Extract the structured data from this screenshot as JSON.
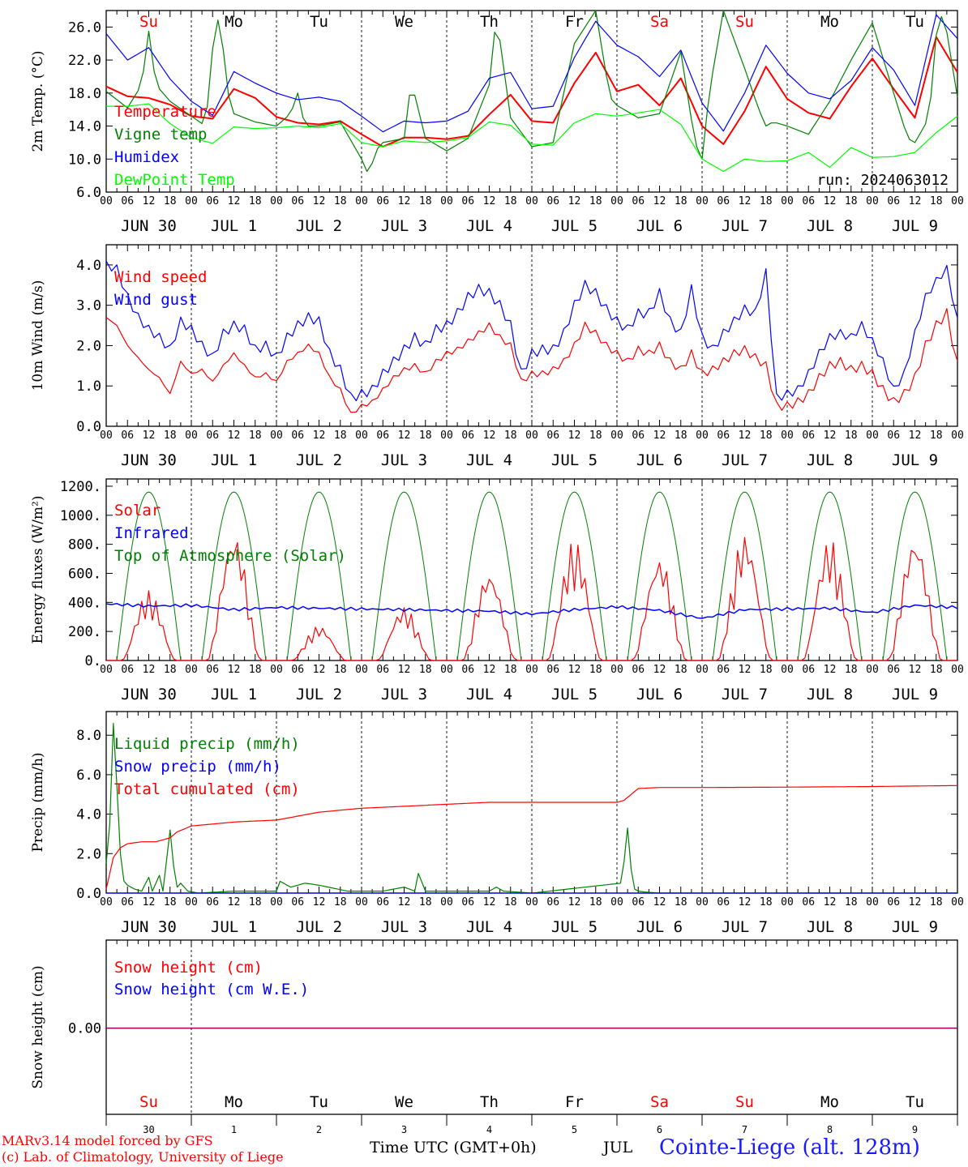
{
  "chart_data": [
    {
      "type": "line",
      "ylabel": "2m Temp. (°C)",
      "ylim": [
        6,
        28
      ],
      "yticks": [
        "6.0",
        "10.0",
        "14.0",
        "18.0",
        "22.0",
        "26.0"
      ],
      "days_top": [
        "Su",
        "Mo",
        "Tu",
        "We",
        "Th",
        "Fr",
        "Sa",
        "Su",
        "Mo",
        "Tu"
      ],
      "run_label": "run: 2024063012",
      "series": [
        {
          "name": "Temperature",
          "color": "#ff0000",
          "x": [
            0,
            6,
            12,
            18,
            24,
            30,
            36,
            42,
            48,
            54,
            60,
            66,
            72,
            78,
            84,
            90,
            96,
            102,
            108,
            114,
            120,
            126,
            132,
            138,
            144,
            150,
            156,
            162,
            168,
            174,
            180,
            186,
            192,
            198,
            204,
            210,
            216,
            222,
            228,
            234,
            240
          ],
          "y": [
            18.8,
            17.6,
            17.4,
            16.6,
            15.2,
            14.9,
            18.5,
            17.4,
            15.1,
            14.4,
            14.2,
            14.6,
            13.0,
            11.5,
            12.6,
            12.6,
            12.4,
            12.8,
            15.4,
            17.8,
            14.6,
            14.4,
            19.2,
            22.9,
            18.2,
            19.0,
            16.5,
            19.8,
            14.0,
            11.8,
            15.8,
            21.2,
            17.3,
            15.6,
            14.9,
            18.8,
            22.2,
            18.5,
            15.0,
            24.8,
            20.5
          ]
        },
        {
          "name": "Vigne temp",
          "color": "#008000",
          "x": [
            0,
            6,
            10,
            12,
            14,
            18,
            24,
            28,
            30,
            32,
            34,
            36,
            42,
            48,
            52,
            54,
            56,
            60,
            66,
            72,
            74,
            76,
            78,
            84,
            86,
            90,
            96,
            102,
            108,
            110,
            114,
            120,
            126,
            132,
            138,
            142,
            144,
            150,
            156,
            162,
            166,
            168,
            170,
            174,
            180,
            184,
            186,
            188,
            192,
            198,
            204,
            210,
            216,
            222,
            226,
            228,
            232,
            234,
            236,
            240
          ],
          "y": [
            18.2,
            16.2,
            19.0,
            25.5,
            19.0,
            17.0,
            15.2,
            14.0,
            23.4,
            28.0,
            18.5,
            15.5,
            14.5,
            14.0,
            15.5,
            18.0,
            14.0,
            14.0,
            14.5,
            10.0,
            8.0,
            11.0,
            12.0,
            12.5,
            19.5,
            12.5,
            11.0,
            12.5,
            19.0,
            27.5,
            15.0,
            11.5,
            12.0,
            24.0,
            28.0,
            17.5,
            16.5,
            15.0,
            15.5,
            23.0,
            12.0,
            10.0,
            18.0,
            28.0,
            21.0,
            16.0,
            14.0,
            14.5,
            14.0,
            13.0,
            17.0,
            22.0,
            26.5,
            18.0,
            12.5,
            12.0,
            15.0,
            25.0,
            28.0,
            17.5
          ]
        },
        {
          "name": "Humidex",
          "color": "#0000ff",
          "x": [
            0,
            6,
            12,
            18,
            24,
            30,
            36,
            42,
            48,
            54,
            60,
            66,
            72,
            78,
            84,
            90,
            96,
            102,
            108,
            114,
            120,
            126,
            132,
            138,
            144,
            150,
            156,
            162,
            168,
            174,
            180,
            186,
            192,
            198,
            204,
            210,
            216,
            222,
            228,
            234,
            240
          ],
          "y": [
            25.2,
            22.0,
            23.5,
            19.7,
            17.0,
            15.3,
            20.6,
            19.2,
            18.0,
            17.2,
            17.5,
            17.0,
            15.2,
            13.3,
            14.6,
            14.4,
            14.6,
            15.8,
            19.8,
            20.5,
            16.1,
            16.4,
            22.3,
            26.7,
            23.8,
            22.4,
            20.0,
            23.2,
            16.8,
            13.4,
            18.0,
            23.8,
            20.4,
            18.0,
            17.3,
            19.5,
            23.5,
            20.8,
            16.5,
            27.5,
            24.6
          ]
        },
        {
          "name": "DewPoint Temp",
          "color": "#00ff00",
          "x": [
            0,
            6,
            12,
            18,
            24,
            30,
            36,
            42,
            48,
            54,
            60,
            66,
            72,
            78,
            84,
            90,
            96,
            102,
            108,
            114,
            120,
            126,
            132,
            138,
            144,
            150,
            156,
            162,
            168,
            174,
            180,
            186,
            192,
            198,
            204,
            210,
            216,
            222,
            228,
            234,
            240
          ],
          "y": [
            16.4,
            16.4,
            16.7,
            14.3,
            12.6,
            11.9,
            13.9,
            13.7,
            13.8,
            14.0,
            13.8,
            14.3,
            12.0,
            11.5,
            12.2,
            12.0,
            12.2,
            12.6,
            14.5,
            14.1,
            11.8,
            11.7,
            14.4,
            15.5,
            15.2,
            15.6,
            16.0,
            14.2,
            10.0,
            8.5,
            10.0,
            9.7,
            9.8,
            10.8,
            9.0,
            11.4,
            10.2,
            10.3,
            10.8,
            13.2,
            15.2
          ]
        }
      ]
    },
    {
      "type": "line",
      "ylabel": "10m Wind (m/s)",
      "ylim": [
        0,
        4.5
      ],
      "yticks": [
        "0.0",
        "1.0",
        "2.0",
        "3.0",
        "4.0"
      ],
      "series": [
        {
          "name": "Wind speed",
          "color": "#ff0000",
          "x": [
            0,
            3,
            6,
            9,
            12,
            15,
            18,
            21,
            24,
            27,
            30,
            33,
            36,
            39,
            42,
            45,
            48,
            51,
            54,
            57,
            60,
            63,
            66,
            69,
            72,
            75,
            78,
            81,
            84,
            87,
            90,
            93,
            96,
            99,
            102,
            105,
            108,
            111,
            114,
            117,
            120,
            123,
            126,
            129,
            132,
            135,
            138,
            141,
            144,
            147,
            150,
            153,
            156,
            159,
            162,
            165,
            168,
            171,
            174,
            177,
            180,
            183,
            186,
            189,
            192,
            195,
            198,
            201,
            204,
            207,
            210,
            213,
            216,
            219,
            222,
            225,
            228,
            231,
            234,
            237,
            240
          ],
          "y": [
            2.7,
            2.5,
            2.0,
            1.7,
            1.4,
            1.2,
            0.8,
            1.6,
            1.3,
            1.4,
            1.1,
            1.5,
            1.8,
            1.5,
            1.2,
            1.3,
            1.1,
            1.6,
            1.8,
            2.0,
            1.8,
            1.2,
            0.9,
            0.3,
            0.5,
            0.6,
            0.9,
            1.2,
            1.4,
            1.5,
            1.3,
            1.6,
            1.8,
            1.9,
            2.1,
            2.3,
            2.5,
            2.2,
            2.0,
            1.1,
            1.3,
            1.3,
            1.4,
            1.6,
            2.0,
            2.5,
            2.3,
            2.0,
            1.8,
            1.6,
            1.9,
            1.8,
            2.0,
            1.6,
            1.4,
            1.8,
            1.3,
            1.4,
            1.6,
            1.8,
            1.9,
            1.7,
            1.5,
            0.5,
            0.5,
            0.6,
            0.8,
            1.2,
            1.5,
            1.6,
            1.4,
            1.5,
            1.3,
            0.9,
            0.6,
            0.8,
            1.2,
            2.0,
            2.5,
            2.8,
            1.5
          ]
        },
        {
          "name": "Wind gust",
          "color": "#0000ff",
          "x": [
            0,
            3,
            6,
            9,
            12,
            15,
            18,
            21,
            24,
            27,
            30,
            33,
            36,
            39,
            42,
            45,
            48,
            51,
            54,
            57,
            60,
            63,
            66,
            69,
            72,
            75,
            78,
            81,
            84,
            87,
            90,
            93,
            96,
            99,
            102,
            105,
            108,
            111,
            114,
            117,
            120,
            123,
            126,
            129,
            132,
            135,
            138,
            141,
            144,
            147,
            150,
            153,
            156,
            159,
            162,
            165,
            168,
            171,
            174,
            177,
            180,
            183,
            186,
            189,
            192,
            195,
            198,
            201,
            204,
            207,
            210,
            213,
            216,
            219,
            222,
            225,
            228,
            231,
            234,
            237,
            240
          ],
          "y": [
            4.0,
            3.9,
            3.2,
            2.7,
            2.4,
            2.2,
            1.9,
            2.6,
            2.4,
            2.0,
            1.7,
            2.3,
            2.5,
            2.4,
            1.9,
            2.0,
            1.7,
            2.2,
            2.5,
            2.7,
            2.6,
            1.8,
            1.4,
            0.7,
            0.8,
            0.9,
            1.3,
            1.6,
            1.9,
            2.2,
            2.0,
            2.4,
            2.5,
            2.8,
            3.2,
            3.4,
            3.3,
            3.0,
            2.5,
            1.3,
            1.8,
            1.9,
            1.9,
            2.3,
            3.0,
            3.5,
            3.3,
            2.9,
            2.6,
            2.4,
            2.8,
            2.8,
            3.3,
            2.6,
            2.3,
            3.4,
            2.2,
            1.9,
            2.3,
            2.6,
            2.9,
            2.8,
            3.8,
            0.7,
            0.8,
            0.9,
            1.3,
            1.8,
            2.2,
            2.3,
            2.2,
            2.5,
            2.1,
            1.6,
            0.9,
            1.3,
            2.3,
            3.2,
            3.6,
            3.9,
            2.6
          ]
        }
      ]
    },
    {
      "type": "line",
      "ylabel": "Energy fluxes (W/m²)",
      "ylim": [
        0,
        1250
      ],
      "yticks": [
        "0.",
        "200.",
        "400.",
        "600.",
        "800.",
        "1000.",
        "1200."
      ],
      "series": [
        {
          "name": "Solar",
          "color": "#ff0000",
          "daily_peak": [
            480,
            890,
            240,
            370,
            620,
            830,
            720,
            880,
            840,
            860
          ]
        },
        {
          "name": "Infrared",
          "color": "#0000ff",
          "x": [
            0,
            12,
            24,
            36,
            48,
            60,
            72,
            84,
            96,
            108,
            120,
            132,
            144,
            156,
            168,
            180,
            192,
            204,
            216,
            228,
            240
          ],
          "y": [
            390,
            375,
            380,
            350,
            365,
            360,
            355,
            350,
            345,
            340,
            320,
            350,
            370,
            345,
            290,
            350,
            355,
            360,
            330,
            380,
            365
          ]
        },
        {
          "name": "Top of Atmosphere (Solar)",
          "color": "#008000",
          "daily_peak": 1160
        }
      ]
    },
    {
      "type": "line",
      "ylabel": "Precip (mm/h)",
      "ylim": [
        0,
        9.2
      ],
      "yticks": [
        "0.0",
        "2.0",
        "4.0",
        "6.0",
        "8.0"
      ],
      "series": [
        {
          "name": "Liquid precip (mm/h)",
          "color": "#008000",
          "x": [
            0,
            1,
            2,
            3,
            4,
            5,
            6,
            8,
            10,
            12,
            13,
            15,
            16,
            18,
            19,
            20,
            21,
            23,
            26,
            36,
            48,
            49,
            52,
            56,
            60,
            68,
            72,
            78,
            84,
            87,
            88,
            90,
            96,
            108,
            110,
            112,
            120,
            145,
            146,
            147,
            148,
            149,
            150,
            152,
            156,
            168,
            192,
            216,
            240
          ],
          "y": [
            1.5,
            3.5,
            8.6,
            5.5,
            2.0,
            0.6,
            0.4,
            0.2,
            0.1,
            0.8,
            0.1,
            0.9,
            0.1,
            3.2,
            1.4,
            0.3,
            0.5,
            0.1,
            0.0,
            0.1,
            0.1,
            0.6,
            0.3,
            0.5,
            0.4,
            0.1,
            0.1,
            0.1,
            0.3,
            0.1,
            1.0,
            0.1,
            0.1,
            0.1,
            0.3,
            0.1,
            0.0,
            0.5,
            1.6,
            3.3,
            1.2,
            0.2,
            0.1,
            0.05,
            0.0,
            0.0,
            0.0,
            0.0,
            0.0
          ]
        },
        {
          "name": "Snow precip (mm/h)",
          "color": "#0000ff",
          "x": [
            0,
            240
          ],
          "y": [
            0,
            0
          ]
        },
        {
          "name": "Total cumulated (cm)",
          "color": "#ff0000",
          "x": [
            0,
            2,
            4,
            6,
            10,
            14,
            18,
            20,
            24,
            36,
            48,
            60,
            72,
            84,
            96,
            108,
            120,
            144,
            146,
            148,
            150,
            156,
            168,
            192,
            216,
            240
          ],
          "y": [
            0.2,
            1.8,
            2.3,
            2.5,
            2.6,
            2.6,
            2.8,
            3.1,
            3.4,
            3.6,
            3.7,
            4.1,
            4.3,
            4.4,
            4.5,
            4.6,
            4.6,
            4.6,
            4.7,
            5.0,
            5.3,
            5.35,
            5.35,
            5.37,
            5.4,
            5.45
          ]
        }
      ]
    },
    {
      "type": "line",
      "ylabel": "Snow height (cm)",
      "yticks": [
        "0.00"
      ],
      "days_bottom": [
        "Su",
        "Mo",
        "Tu",
        "We",
        "Th",
        "Fr",
        "Sa",
        "Su",
        "Mo",
        "Tu"
      ],
      "day_numbers": [
        "30",
        "1",
        "2",
        "3",
        "4",
        "5",
        "6",
        "7",
        "8",
        "9"
      ],
      "series": [
        {
          "name": "Snow height (cm)",
          "color": "#ff0000",
          "x": [
            0,
            240
          ],
          "y": [
            0,
            0
          ]
        },
        {
          "name": "Snow height (cm W.E.)",
          "color": "#0000ff",
          "x": [
            0,
            240
          ],
          "y": [
            0,
            0
          ]
        }
      ]
    }
  ],
  "x_axis": {
    "hour_ticks": [
      "00",
      "06",
      "12",
      "18"
    ],
    "date_labels": [
      "JUN 30",
      "JUL  1",
      "JUL  2",
      "JUL  3",
      "JUL  4",
      "JUL  5",
      "JUL  6",
      "JUL  7",
      "JUL  8",
      "JUL  9"
    ],
    "final_tick": "00"
  },
  "footer": {
    "model_line": "MARv3.14 model forced by GFS",
    "credit_line": "(c) Lab. of Climatology, University of Liege",
    "time_label": "Time UTC (GMT+0h)",
    "month_label": "JUL",
    "station": "Cointe-Liege (alt. 128m)"
  }
}
